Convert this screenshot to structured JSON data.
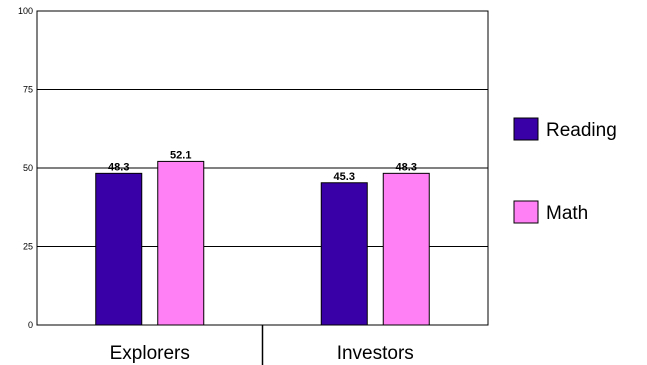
{
  "chart_data": {
    "type": "bar",
    "categories": [
      "Explorers",
      "Investors"
    ],
    "series": [
      {
        "name": "Reading",
        "values": [
          48.3,
          45.3
        ],
        "value_labels": [
          "48.3",
          "45.3"
        ],
        "color": "#3a00a8"
      },
      {
        "name": "Math",
        "values": [
          52.1,
          48.3
        ],
        "value_labels": [
          "52.1",
          "48.3"
        ],
        "color": "#ff80f4"
      }
    ],
    "title": "",
    "xlabel": "",
    "ylabel": "",
    "ylim": [
      0,
      100
    ],
    "yticks": [
      0,
      25,
      50,
      75,
      100
    ],
    "ytick_labels": [
      "0",
      "25",
      "50",
      "75",
      "100"
    ],
    "grid": "horizontal",
    "legend_position": "right"
  }
}
